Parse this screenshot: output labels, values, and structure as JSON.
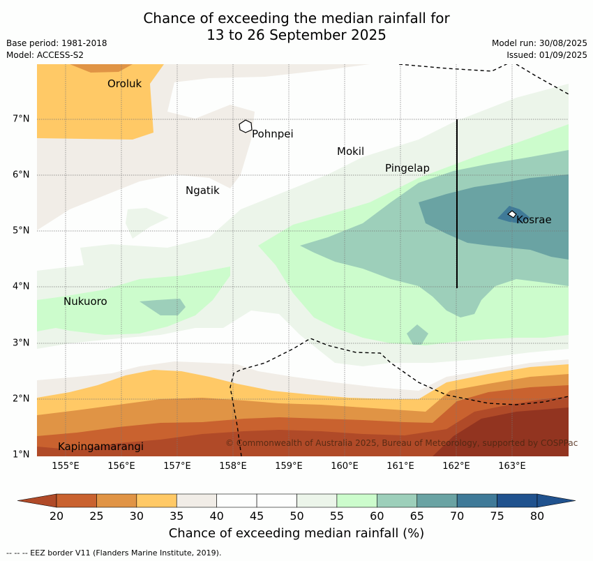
{
  "title_line1": "Chance of exceeding the median rainfall for",
  "title_line2": "13 to 26 September 2025",
  "base_period": "Base period: 1981-2018",
  "model": "Model: ACCESS-S2",
  "model_run": "Model run: 30/08/2025",
  "issued": "Issued: 01/09/2025",
  "copyright": "© Commonwealth of Australia 2025, Bureau of Meteorology, supported by COSPPac",
  "footnote": "--  --  -- EEZ border V11 (Flanders Marine Institute, 2019).",
  "colorbar": {
    "label": "Chance of exceeding median rainfall (%)",
    "ticks": [
      "20",
      "25",
      "30",
      "35",
      "40",
      "45",
      "50",
      "55",
      "60",
      "65",
      "70",
      "75",
      "80"
    ],
    "colors": [
      "#b04a28",
      "#c9622f",
      "#e09445",
      "#ffc966",
      "#f1ede7",
      "#fdfefd",
      "#fdfefd",
      "#ecf5ea",
      "#ccfccc",
      "#9dcfba",
      "#6aa3a3",
      "#3f7a98",
      "#20528e"
    ]
  },
  "axes": {
    "x_ticks": [
      "155°E",
      "156°E",
      "157°E",
      "158°E",
      "159°E",
      "160°E",
      "161°E",
      "162°E",
      "163°E"
    ],
    "y_ticks": [
      "7°N",
      "6°N",
      "5°N",
      "4°N",
      "3°N",
      "2°N",
      "1°N"
    ]
  },
  "places": [
    {
      "name": "Oroluk"
    },
    {
      "name": "Pohnpei"
    },
    {
      "name": "Mokil"
    },
    {
      "name": "Pingelap"
    },
    {
      "name": "Ngatik"
    },
    {
      "name": "Kosrae"
    },
    {
      "name": "Nukuoro"
    },
    {
      "name": "Kapingamarangi"
    }
  ]
}
